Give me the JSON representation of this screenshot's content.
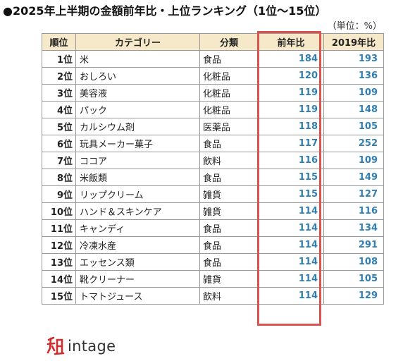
{
  "title": "●2025年上半期の金額前年比・上位ランキング（1位～15位）",
  "unit": "（単位：%）",
  "table": {
    "headers": [
      "順位",
      "カテゴリー",
      "分類",
      "前年比",
      "2019年比"
    ],
    "rows": [
      {
        "rank": "1位",
        "category": "米",
        "class": "食品",
        "yoy": "184",
        "vs2019": "193"
      },
      {
        "rank": "2位",
        "category": "おしろい",
        "class": "化粧品",
        "yoy": "120",
        "vs2019": "136"
      },
      {
        "rank": "3位",
        "category": "美容液",
        "class": "化粧品",
        "yoy": "119",
        "vs2019": "109"
      },
      {
        "rank": "4位",
        "category": "パック",
        "class": "化粧品",
        "yoy": "119",
        "vs2019": "148"
      },
      {
        "rank": "5位",
        "category": "カルシウム剤",
        "class": "医薬品",
        "yoy": "118",
        "vs2019": "105"
      },
      {
        "rank": "6位",
        "category": "玩具メーカー菓子",
        "class": "食品",
        "yoy": "117",
        "vs2019": "252"
      },
      {
        "rank": "7位",
        "category": "ココア",
        "class": "飲料",
        "yoy": "116",
        "vs2019": "109"
      },
      {
        "rank": "8位",
        "category": "米飯類",
        "class": "食品",
        "yoy": "115",
        "vs2019": "149"
      },
      {
        "rank": "9位",
        "category": "リップクリーム",
        "class": "雑貨",
        "yoy": "115",
        "vs2019": "127"
      },
      {
        "rank": "10位",
        "category": "ハンド＆スキンケア",
        "class": "雑貨",
        "yoy": "114",
        "vs2019": "116"
      },
      {
        "rank": "11位",
        "category": "キャンディ",
        "class": "食品",
        "yoy": "114",
        "vs2019": "134"
      },
      {
        "rank": "12位",
        "category": "冷凍水産",
        "class": "食品",
        "yoy": "114",
        "vs2019": "291"
      },
      {
        "rank": "13位",
        "category": "エッセンス類",
        "class": "食品",
        "yoy": "114",
        "vs2019": "108"
      },
      {
        "rank": "14位",
        "category": "靴クリーナー",
        "class": "雑貨",
        "yoy": "114",
        "vs2019": "105"
      },
      {
        "rank": "15位",
        "category": "トマトジュース",
        "class": "飲料",
        "yoy": "114",
        "vs2019": "129"
      }
    ]
  },
  "logo": {
    "text": "intage",
    "icon": "intage-logo-icon"
  },
  "colors": {
    "header_bg": "#f5e9c9",
    "value_blue": "#2f7fb5",
    "highlight_red": "#d9544f"
  }
}
